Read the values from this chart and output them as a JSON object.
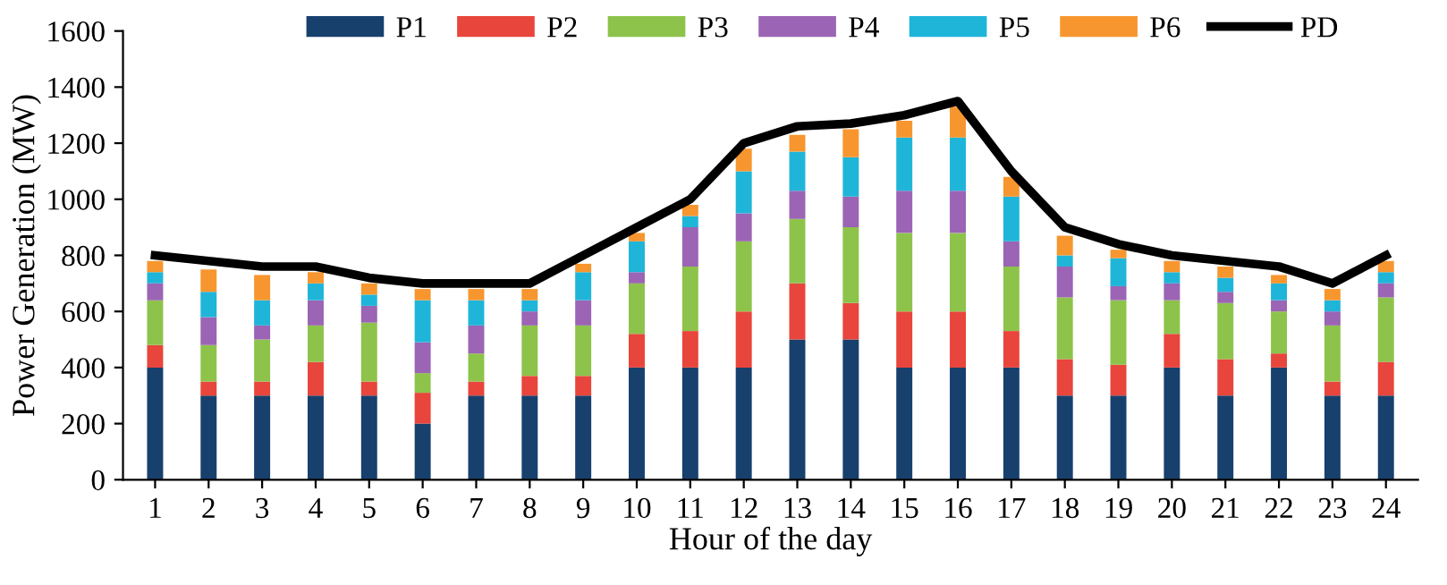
{
  "chart_data": {
    "type": "bar",
    "stacked": true,
    "xlabel": "Hour of the day",
    "ylabel": "Power Generation (MW)",
    "categories": [
      "1",
      "2",
      "3",
      "4",
      "5",
      "6",
      "7",
      "8",
      "9",
      "10",
      "11",
      "12",
      "13",
      "14",
      "15",
      "16",
      "17",
      "18",
      "19",
      "20",
      "21",
      "22",
      "23",
      "24"
    ],
    "ylim": [
      0,
      1600
    ],
    "yticks": [
      0,
      200,
      400,
      600,
      800,
      1000,
      1200,
      1400,
      1600
    ],
    "grid": false,
    "legend": "top",
    "series": [
      {
        "name": "P1",
        "color": "#17406d",
        "values": [
          400,
          300,
          300,
          300,
          300,
          200,
          300,
          300,
          300,
          400,
          400,
          400,
          500,
          500,
          400,
          400,
          400,
          300,
          300,
          400,
          300,
          400,
          300,
          300
        ]
      },
      {
        "name": "P2",
        "color": "#e8453c",
        "values": [
          80,
          50,
          50,
          120,
          50,
          110,
          50,
          70,
          70,
          120,
          130,
          200,
          200,
          130,
          200,
          200,
          130,
          130,
          110,
          120,
          130,
          50,
          50,
          120
        ]
      },
      {
        "name": "P3",
        "color": "#8dc34a",
        "values": [
          160,
          130,
          150,
          130,
          210,
          70,
          100,
          180,
          180,
          180,
          230,
          250,
          230,
          270,
          280,
          280,
          230,
          220,
          230,
          120,
          200,
          150,
          200,
          230
        ]
      },
      {
        "name": "P4",
        "color": "#9b64b4",
        "values": [
          60,
          100,
          50,
          90,
          60,
          110,
          100,
          50,
          90,
          40,
          140,
          100,
          100,
          110,
          150,
          150,
          90,
          110,
          50,
          60,
          40,
          40,
          50,
          50
        ]
      },
      {
        "name": "P5",
        "color": "#1fb5d9",
        "values": [
          40,
          90,
          90,
          60,
          40,
          150,
          90,
          40,
          100,
          110,
          40,
          150,
          140,
          140,
          190,
          190,
          160,
          40,
          100,
          40,
          50,
          60,
          40,
          40
        ]
      },
      {
        "name": "P6",
        "color": "#f7962e",
        "values": [
          40,
          80,
          90,
          40,
          40,
          40,
          40,
          40,
          30,
          30,
          40,
          80,
          60,
          100,
          60,
          110,
          70,
          70,
          30,
          40,
          40,
          30,
          40,
          40
        ]
      },
      {
        "name": "PD",
        "type": "line",
        "color": "#000000",
        "values": [
          800,
          780,
          760,
          760,
          720,
          700,
          700,
          700,
          800,
          900,
          1000,
          1200,
          1260,
          1270,
          1300,
          1350,
          1100,
          900,
          840,
          800,
          780,
          760,
          700,
          800
        ]
      }
    ]
  }
}
